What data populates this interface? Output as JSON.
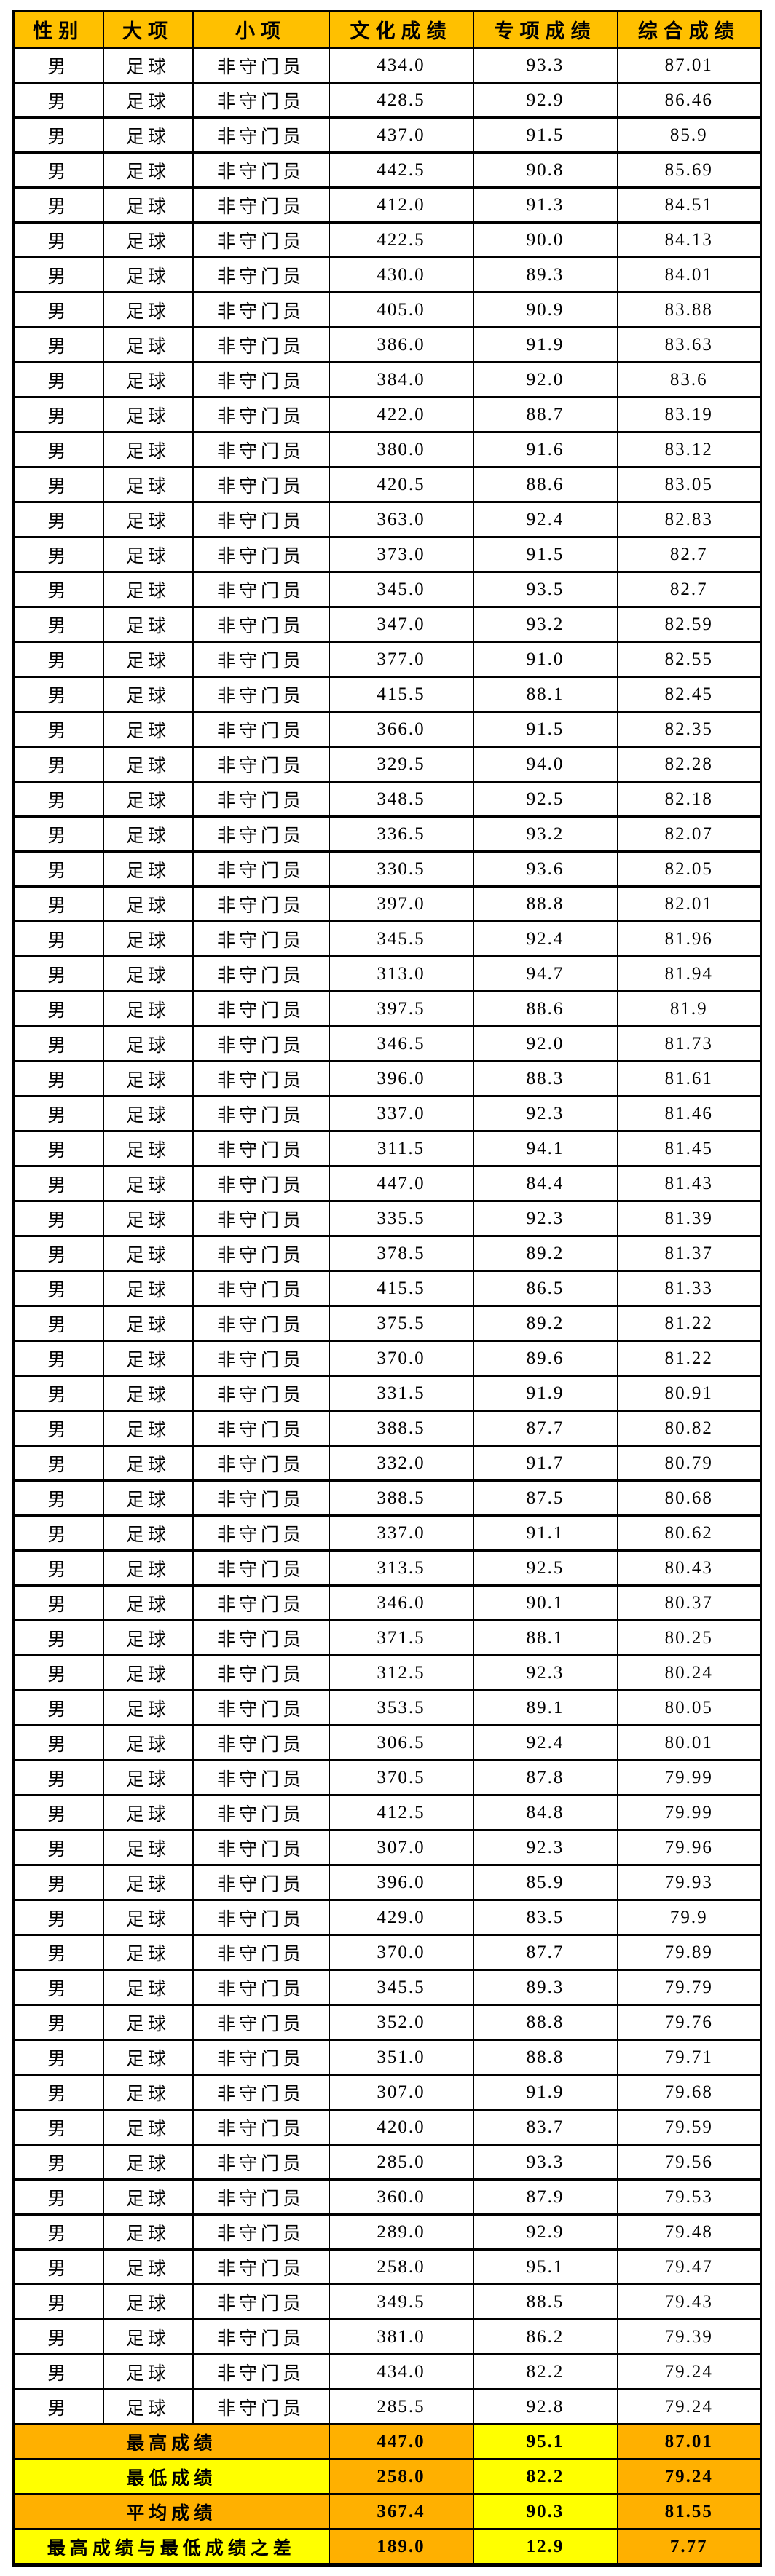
{
  "table": {
    "headers": [
      "性别",
      "大项",
      "小项",
      "文化成绩",
      "专项成绩",
      "综合成绩"
    ],
    "colors": {
      "header_bg": "#FFC000",
      "summary_orange": "#FFB000",
      "summary_yellow": "#FFFF00",
      "border": "#000000",
      "text": "#000000",
      "row_bg": "#FFFFFF"
    },
    "constants": {
      "gender": "男",
      "major": "足球",
      "minor": "非守门员"
    },
    "rows": [
      [
        "434.0",
        "93.3",
        "87.01"
      ],
      [
        "428.5",
        "92.9",
        "86.46"
      ],
      [
        "437.0",
        "91.5",
        "85.9"
      ],
      [
        "442.5",
        "90.8",
        "85.69"
      ],
      [
        "412.0",
        "91.3",
        "84.51"
      ],
      [
        "422.5",
        "90.0",
        "84.13"
      ],
      [
        "430.0",
        "89.3",
        "84.01"
      ],
      [
        "405.0",
        "90.9",
        "83.88"
      ],
      [
        "386.0",
        "91.9",
        "83.63"
      ],
      [
        "384.0",
        "92.0",
        "83.6"
      ],
      [
        "422.0",
        "88.7",
        "83.19"
      ],
      [
        "380.0",
        "91.6",
        "83.12"
      ],
      [
        "420.5",
        "88.6",
        "83.05"
      ],
      [
        "363.0",
        "92.4",
        "82.83"
      ],
      [
        "373.0",
        "91.5",
        "82.7"
      ],
      [
        "345.0",
        "93.5",
        "82.7"
      ],
      [
        "347.0",
        "93.2",
        "82.59"
      ],
      [
        "377.0",
        "91.0",
        "82.55"
      ],
      [
        "415.5",
        "88.1",
        "82.45"
      ],
      [
        "366.0",
        "91.5",
        "82.35"
      ],
      [
        "329.5",
        "94.0",
        "82.28"
      ],
      [
        "348.5",
        "92.5",
        "82.18"
      ],
      [
        "336.5",
        "93.2",
        "82.07"
      ],
      [
        "330.5",
        "93.6",
        "82.05"
      ],
      [
        "397.0",
        "88.8",
        "82.01"
      ],
      [
        "345.5",
        "92.4",
        "81.96"
      ],
      [
        "313.0",
        "94.7",
        "81.94"
      ],
      [
        "397.5",
        "88.6",
        "81.9"
      ],
      [
        "346.5",
        "92.0",
        "81.73"
      ],
      [
        "396.0",
        "88.3",
        "81.61"
      ],
      [
        "337.0",
        "92.3",
        "81.46"
      ],
      [
        "311.5",
        "94.1",
        "81.45"
      ],
      [
        "447.0",
        "84.4",
        "81.43"
      ],
      [
        "335.5",
        "92.3",
        "81.39"
      ],
      [
        "378.5",
        "89.2",
        "81.37"
      ],
      [
        "415.5",
        "86.5",
        "81.33"
      ],
      [
        "375.5",
        "89.2",
        "81.22"
      ],
      [
        "370.0",
        "89.6",
        "81.22"
      ],
      [
        "331.5",
        "91.9",
        "80.91"
      ],
      [
        "388.5",
        "87.7",
        "80.82"
      ],
      [
        "332.0",
        "91.7",
        "80.79"
      ],
      [
        "388.5",
        "87.5",
        "80.68"
      ],
      [
        "337.0",
        "91.1",
        "80.62"
      ],
      [
        "313.5",
        "92.5",
        "80.43"
      ],
      [
        "346.0",
        "90.1",
        "80.37"
      ],
      [
        "371.5",
        "88.1",
        "80.25"
      ],
      [
        "312.5",
        "92.3",
        "80.24"
      ],
      [
        "353.5",
        "89.1",
        "80.05"
      ],
      [
        "306.5",
        "92.4",
        "80.01"
      ],
      [
        "370.5",
        "87.8",
        "79.99"
      ],
      [
        "412.5",
        "84.8",
        "79.99"
      ],
      [
        "307.0",
        "92.3",
        "79.96"
      ],
      [
        "396.0",
        "85.9",
        "79.93"
      ],
      [
        "429.0",
        "83.5",
        "79.9"
      ],
      [
        "370.0",
        "87.7",
        "79.89"
      ],
      [
        "345.5",
        "89.3",
        "79.79"
      ],
      [
        "352.0",
        "88.8",
        "79.76"
      ],
      [
        "351.0",
        "88.8",
        "79.71"
      ],
      [
        "307.0",
        "91.9",
        "79.68"
      ],
      [
        "420.0",
        "83.7",
        "79.59"
      ],
      [
        "285.0",
        "93.3",
        "79.56"
      ],
      [
        "360.0",
        "87.9",
        "79.53"
      ],
      [
        "289.0",
        "92.9",
        "79.48"
      ],
      [
        "258.0",
        "95.1",
        "79.47"
      ],
      [
        "349.5",
        "88.5",
        "79.43"
      ],
      [
        "381.0",
        "86.2",
        "79.39"
      ],
      [
        "434.0",
        "82.2",
        "79.24"
      ],
      [
        "285.5",
        "92.8",
        "79.24"
      ]
    ],
    "summary_rows": [
      {
        "label": "最高成绩",
        "label_bg": "#FFB000",
        "values": [
          "447.0",
          "95.1",
          "87.01"
        ],
        "value_bgs": [
          "#FFB000",
          "#FFFF00",
          "#FFB000"
        ]
      },
      {
        "label": "最低成绩",
        "label_bg": "#FFFF00",
        "values": [
          "258.0",
          "82.2",
          "79.24"
        ],
        "value_bgs": [
          "#FFB000",
          "#FFFF00",
          "#FFB000"
        ]
      },
      {
        "label": "平均成绩",
        "label_bg": "#FFB000",
        "values": [
          "367.4",
          "90.3",
          "81.55"
        ],
        "value_bgs": [
          "#FFB000",
          "#FFFF00",
          "#FFB000"
        ]
      },
      {
        "label": "最高成绩与最低成绩之差",
        "label_bg": "#FFFF00",
        "values": [
          "189.0",
          "12.9",
          "7.77"
        ],
        "value_bgs": [
          "#FFB000",
          "#FFFF00",
          "#FFB000"
        ]
      }
    ]
  }
}
